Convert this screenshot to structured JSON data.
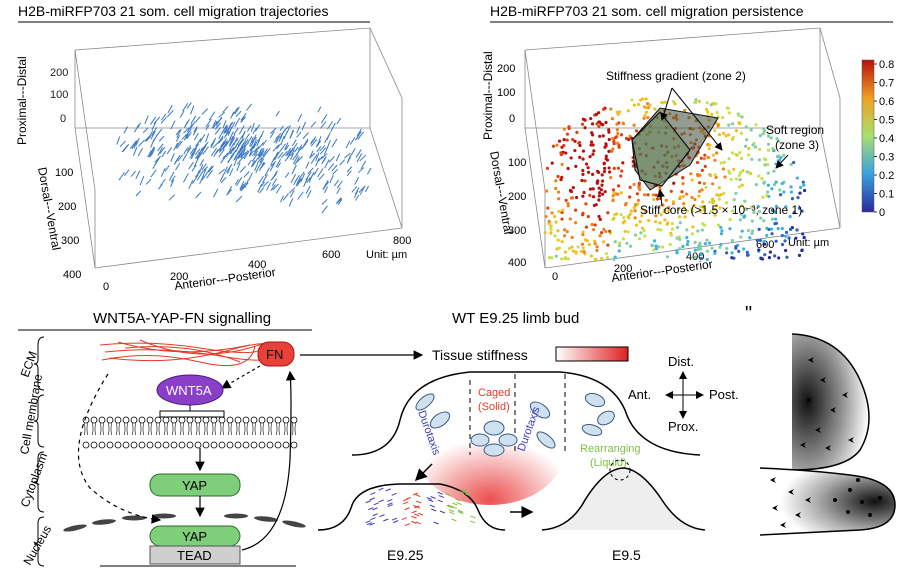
{
  "top_left": {
    "title": "H2B-miRFP703 21 som. cell migration trajectories",
    "z_axis_label": "Proximal---Distal",
    "z_ticks": [
      "200",
      "100",
      "0"
    ],
    "y_axis_label": "Dorsal---Ventral",
    "y_ticks": [
      "100",
      "200",
      "300",
      "400"
    ],
    "x_axis_label": "Anterior---Posterior",
    "x_ticks": [
      "0",
      "200",
      "400",
      "600",
      "800"
    ],
    "unit": "Unit: µm"
  },
  "top_right": {
    "title": "H2B-miRFP703 21 som. cell migration persistence",
    "z_axis_label": "Proximal---Distal",
    "z_ticks": [
      "200",
      "100",
      "0"
    ],
    "y_axis_label": "Dorsal---Ventral",
    "y_ticks": [
      "100",
      "200",
      "300",
      "400"
    ],
    "x_axis_label": "Anterior---Posterior",
    "x_ticks": [
      "0",
      "200",
      "400",
      "600"
    ],
    "unit": "Unit: µm",
    "annotation_gradient": "Stiffness gradient (zone 2)",
    "annotation_soft_1": "Soft region",
    "annotation_soft_2": "(zone 3)",
    "annotation_core": "Stiff core (>1.5 × 10⁻³; zone 1)",
    "colorbar_ticks": [
      "0.8",
      "0.7",
      "0.6",
      "0.5",
      "0.4",
      "0.3",
      "0.2",
      "0.1",
      "0"
    ]
  },
  "bottom_left": {
    "title": "WNT5A-YAP-FN signalling",
    "label_ecm": "ECM",
    "label_membrane": "Cell membrane",
    "label_cytoplasm": "Cytoplasm",
    "label_nucleus": "Nucleus",
    "fn": "FN",
    "wnt5a": "WNT5A",
    "yap_cyto": "YAP",
    "yap_nuc": "YAP",
    "tead": "TEAD"
  },
  "bottom_middle": {
    "title": "WT E9.25 limb bud",
    "tissue_stiffness": "Tissue stiffness",
    "caged_1": "Caged",
    "caged_2": "(Solid)",
    "durotaxis_left": "Durotaxis",
    "durotaxis_right": "Durotaxis",
    "rearranging_1": "Rearranging",
    "rearranging_2": "(Liquid)",
    "dist": "Dist.",
    "prox": "Prox.",
    "ant": "Ant.",
    "post": "Post.",
    "stage_1": "E9.25",
    "stage_2": "E9.5"
  },
  "bottom_right": {
    "marker": "\""
  },
  "colors": {
    "arrow_blue": "#3a78c4",
    "fn_red": "#e8413a",
    "wnt_purple": "#8a3fc8",
    "yap_green": "#7fcf7a",
    "tead_grey": "#cfcfcf",
    "liquid_green": "#7fbf3f"
  }
}
